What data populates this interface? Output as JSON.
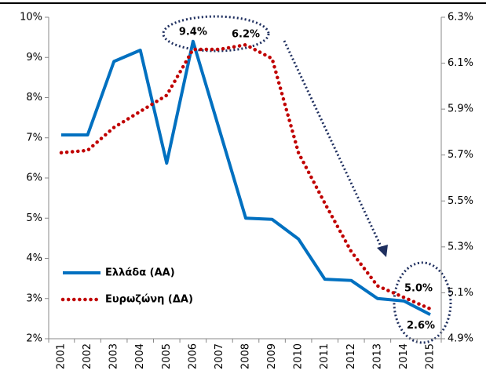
{
  "chart_data": {
    "type": "line",
    "categories": [
      "2001",
      "2002",
      "2003",
      "2004",
      "2005",
      "2006",
      "2007",
      "2008",
      "2009",
      "2010",
      "2011",
      "2012",
      "2013",
      "2014",
      "2015"
    ],
    "series": [
      {
        "name": "Ελλάδα (ΑΑ)",
        "color": "#0070c0",
        "axis": "y",
        "values": [
          7.07,
          7.07,
          8.9,
          9.18,
          6.37,
          9.4,
          7.2,
          5.0,
          4.97,
          4.48,
          3.48,
          3.45,
          3.0,
          2.94,
          2.6
        ],
        "value_labels": [
          null,
          null,
          null,
          null,
          null,
          "9.4%",
          null,
          null,
          null,
          null,
          null,
          null,
          null,
          null,
          "2.6%"
        ]
      },
      {
        "name": "Ευρωζώνη (ΔΑ)",
        "color": "#c00000",
        "axis": "y2",
        "values": [
          5.71,
          5.72,
          5.82,
          5.89,
          5.96,
          6.16,
          6.16,
          6.18,
          6.12,
          5.71,
          5.49,
          5.28,
          5.13,
          5.08,
          5.03
        ],
        "value_labels": [
          null,
          null,
          null,
          null,
          null,
          null,
          null,
          "6.2%",
          null,
          null,
          null,
          null,
          null,
          null,
          "5.0%"
        ]
      }
    ],
    "ylim": [
      2,
      10
    ],
    "yticks": [
      {
        "value": 2,
        "label": "2%"
      },
      {
        "value": 3,
        "label": "3%"
      },
      {
        "value": 4,
        "label": "4%"
      },
      {
        "value": 5,
        "label": "5%"
      },
      {
        "value": 6,
        "label": "6%"
      },
      {
        "value": 7,
        "label": "7%"
      },
      {
        "value": 8,
        "label": "8%"
      },
      {
        "value": 9,
        "label": "9%"
      },
      {
        "value": 10,
        "label": "10%"
      }
    ],
    "y2lim": [
      4.9,
      6.3
    ],
    "y2ticks": [
      {
        "value": 4.9,
        "label": "4.9%"
      },
      {
        "value": 5.1,
        "label": "5.1%"
      },
      {
        "value": 5.3,
        "label": "5.3%"
      },
      {
        "value": 5.5,
        "label": "5.5%"
      },
      {
        "value": 5.7,
        "label": "5.7%"
      },
      {
        "value": 5.9,
        "label": "5.9%"
      },
      {
        "value": 6.1,
        "label": "6.1%"
      },
      {
        "value": 6.3,
        "label": "6.3%"
      }
    ],
    "grid": false,
    "legend": "lower left"
  }
}
